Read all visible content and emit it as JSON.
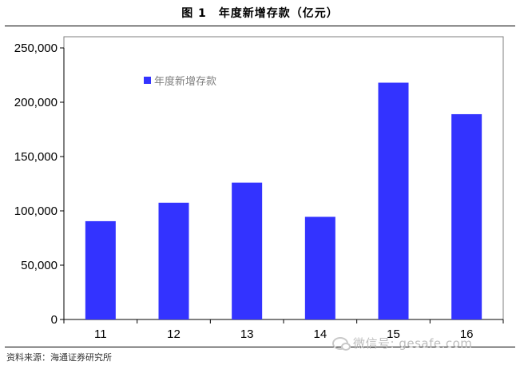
{
  "figure_title": "图 1　年度新增存款（亿元）",
  "source_note": "资料来源：海通证券研究所",
  "watermark": "微信号: gesafe.com",
  "watermark_icon": "wechat-logo-icon",
  "colors": {
    "bar": "#3333ff",
    "axis": "#000000",
    "plot_border": "#7f7f7f"
  },
  "chart_data": {
    "type": "bar",
    "categories": [
      "11",
      "12",
      "13",
      "14",
      "15",
      "16"
    ],
    "series": [
      {
        "name": "年度新增存款",
        "values": [
          90500,
          107500,
          126000,
          94500,
          218000,
          189000
        ]
      }
    ],
    "yticks": [
      0,
      50000,
      100000,
      150000,
      200000,
      250000
    ],
    "ytick_labels": [
      "0",
      "50,000",
      "100,000",
      "150,000",
      "200,000",
      "250,000"
    ],
    "ylim": [
      0,
      250000
    ],
    "xlabel": "",
    "ylabel": "",
    "grid": false,
    "legend_position": "top-left inside plot"
  }
}
